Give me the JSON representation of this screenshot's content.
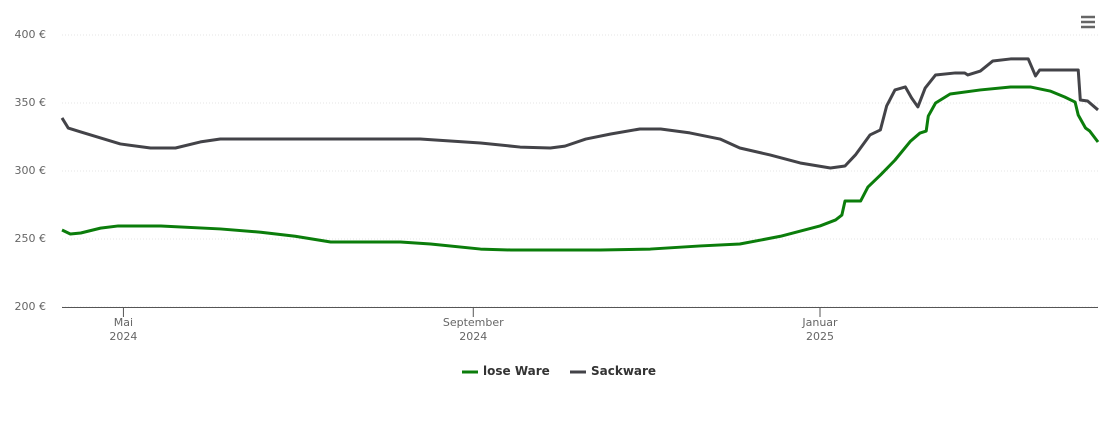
{
  "chart_data": {
    "type": "line",
    "xlim": [
      2024.272,
      2025.267
    ],
    "xticks": [
      {
        "value": 2024.331,
        "label": "Mai 2024"
      },
      {
        "value": 2024.667,
        "label": "September 2024"
      },
      {
        "value": 2025.0,
        "label": "Januar 2025"
      }
    ],
    "ylim": [
      200,
      400
    ],
    "yticks": [
      {
        "value": 200,
        "label": "200 €"
      },
      {
        "value": 250,
        "label": "250 €"
      },
      {
        "value": 300,
        "label": "300 €"
      },
      {
        "value": 350,
        "label": "350 €"
      },
      {
        "value": 400,
        "label": "400 €"
      }
    ],
    "grid": true,
    "legend": "bottom",
    "series": [
      {
        "name": "lose Ware",
        "color": "#0b7d0b",
        "x": [
          2024.272,
          2024.28,
          2024.29,
          2024.309,
          2024.326,
          2024.367,
          2024.424,
          2024.463,
          2024.496,
          2024.53,
          2024.597,
          2024.626,
          2024.674,
          2024.703,
          2024.789,
          2024.837,
          2024.885,
          2024.923,
          2024.962,
          2025.0,
          2025.015,
          2025.021,
          2025.024,
          2025.039,
          2025.046,
          2025.058,
          2025.072,
          2025.087,
          2025.096,
          2025.102,
          2025.104,
          2025.111,
          2025.125,
          2025.154,
          2025.183,
          2025.202,
          2025.221,
          2025.235,
          2025.245,
          2025.248,
          2025.255,
          2025.259,
          2025.267
        ],
        "values": [
          256.6,
          253.7,
          254.4,
          258.0,
          259.6,
          259.6,
          257.4,
          255.0,
          252.0,
          247.8,
          247.8,
          246.3,
          242.6,
          241.9,
          241.9,
          242.6,
          244.9,
          246.3,
          252.0,
          259.6,
          264.0,
          267.6,
          277.9,
          277.9,
          288.2,
          297.0,
          308.0,
          322.0,
          327.9,
          329.4,
          340.4,
          350.0,
          356.6,
          359.6,
          361.8,
          361.8,
          358.8,
          354.4,
          350.7,
          341.2,
          331.6,
          329.4,
          321.3
        ]
      },
      {
        "name": "Sackware",
        "color": "#434348",
        "x": [
          2024.272,
          2024.278,
          2024.29,
          2024.328,
          2024.357,
          2024.381,
          2024.405,
          2024.424,
          2024.501,
          2024.616,
          2024.674,
          2024.712,
          2024.741,
          2024.755,
          2024.775,
          2024.799,
          2024.827,
          2024.847,
          2024.875,
          2024.904,
          2024.923,
          2024.952,
          2024.981,
          2025.01,
          2025.024,
          2025.034,
          2025.048,
          2025.058,
          2025.064,
          2025.072,
          2025.082,
          2025.088,
          2025.094,
          2025.101,
          2025.111,
          2025.13,
          2025.139,
          2025.142,
          2025.154,
          2025.166,
          2025.183,
          2025.2,
          2025.207,
          2025.211,
          2025.248,
          2025.25,
          2025.257,
          2025.267
        ],
        "values": [
          339.0,
          331.6,
          328.7,
          319.9,
          316.9,
          316.9,
          321.4,
          323.5,
          323.5,
          323.5,
          320.6,
          317.6,
          316.9,
          318.3,
          323.5,
          327.2,
          330.9,
          330.9,
          328.0,
          323.5,
          316.9,
          311.8,
          305.9,
          302.2,
          303.7,
          311.8,
          326.5,
          330.2,
          347.8,
          359.6,
          361.8,
          353.7,
          347.1,
          361.0,
          370.6,
          372.1,
          372.1,
          370.6,
          373.5,
          380.9,
          382.4,
          382.4,
          369.9,
          374.3,
          374.3,
          352.2,
          351.5,
          344.9
        ]
      }
    ]
  }
}
